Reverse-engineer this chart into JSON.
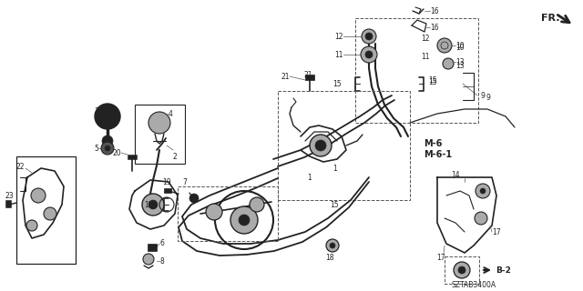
{
  "bg_color": "#ffffff",
  "line_color": "#2a2a2a",
  "gray_part": "#888888",
  "dark_part": "#222222",
  "med_gray": "#555555",
  "light_gray": "#aaaaaa",
  "diagram_code": "SZTAB3400A",
  "fig_w": 6.4,
  "fig_h": 3.2,
  "dpi": 100,
  "fr_label": "FR.",
  "m6_label": "M-6",
  "m61_label": "M-6-1",
  "b2_label": "B-2"
}
